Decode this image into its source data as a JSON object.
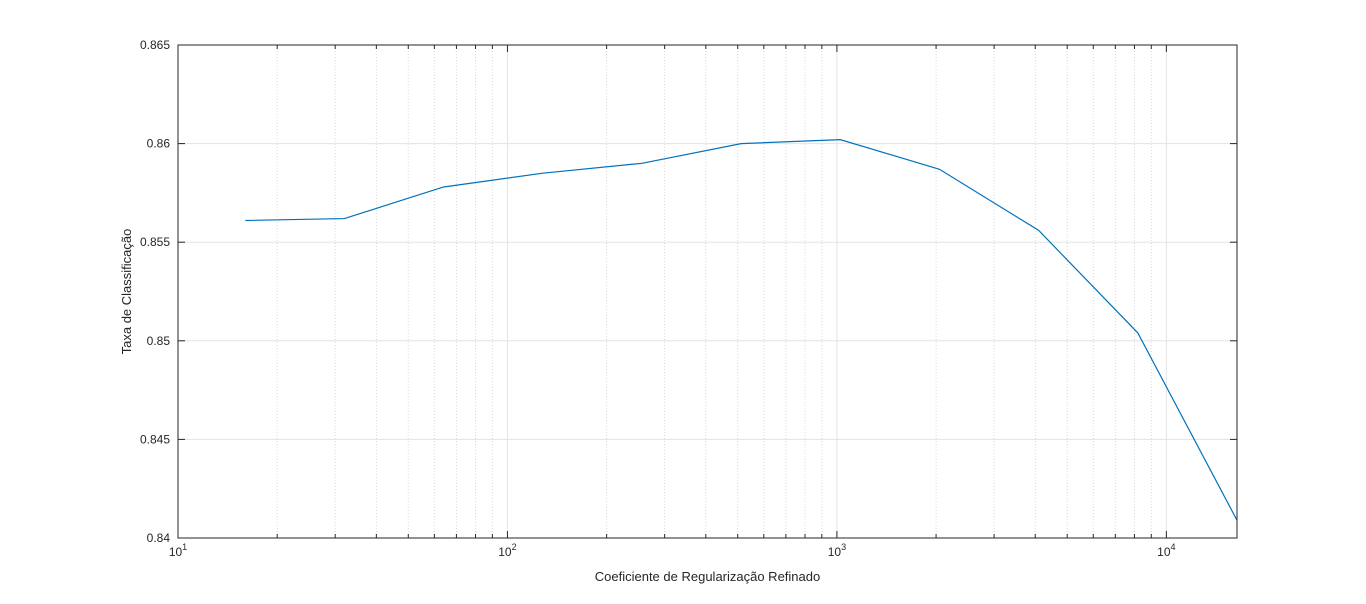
{
  "chart_data": {
    "type": "line",
    "title": "",
    "xlabel": "Coeficiente de Regularização Refinado",
    "ylabel": "Taxa de Classificação",
    "xscale": "log",
    "xlim": [
      10,
      16384
    ],
    "ylim": [
      0.84,
      0.865
    ],
    "grid": true,
    "yticks": [
      "0.84",
      "0.845",
      "0.85",
      "0.855",
      "0.86",
      "0.865"
    ],
    "xticks": [
      {
        "base": "10",
        "exp": "1"
      },
      {
        "base": "10",
        "exp": "2"
      },
      {
        "base": "10",
        "exp": "3"
      },
      {
        "base": "10",
        "exp": "4"
      }
    ],
    "series": [
      {
        "color": "#0072BD",
        "x": [
          16,
          32,
          64,
          128,
          256,
          512,
          1024,
          2048,
          4096,
          8192,
          16384
        ],
        "y": [
          0.8561,
          0.8562,
          0.8578,
          0.8585,
          0.859,
          0.86,
          0.8602,
          0.8587,
          0.8556,
          0.8504,
          0.8409
        ]
      }
    ]
  }
}
